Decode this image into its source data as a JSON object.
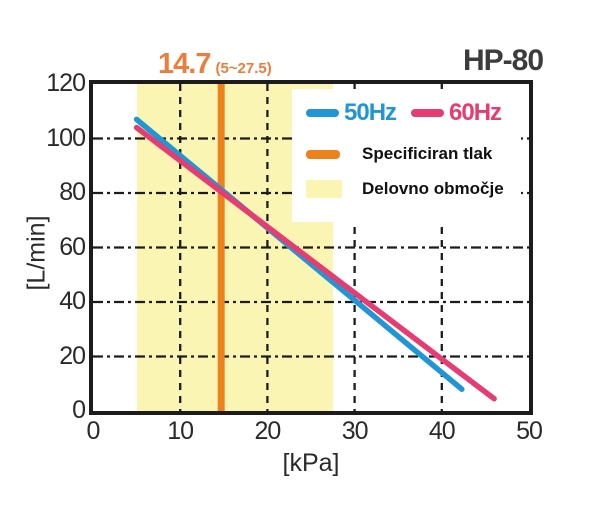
{
  "header": {
    "pressure_value": "14.7",
    "pressure_range": "(5~27.5)",
    "model": "HP-80"
  },
  "legend": {
    "hz50": "50Hz",
    "hz60": "60Hz",
    "specified_pressure": "Specificiran tlak",
    "working_range": "Delovno območje"
  },
  "axes": {
    "x_label": "[kPa]",
    "y_label": "[L/min]"
  },
  "colors": {
    "blue": "#2196d4",
    "pink": "#e73c72",
    "orange_line": "#ed821d",
    "orange_text": "#ee7d39",
    "yellow_band": "#fbf5b4",
    "axis": "#1c1c1c"
  },
  "chart_data": {
    "type": "line",
    "title": "HP-80",
    "xlabel": "[kPa]",
    "ylabel": "[L/min]",
    "xlim": [
      0,
      50
    ],
    "ylim": [
      0,
      120
    ],
    "xticks": [
      0,
      10,
      20,
      30,
      40,
      50
    ],
    "yticks": [
      0,
      20,
      40,
      60,
      80,
      100,
      120
    ],
    "grid": true,
    "legend_position": "upper right",
    "series": [
      {
        "name": "50Hz",
        "color": "#2196d4",
        "points": [
          [
            5,
            107
          ],
          [
            42.3,
            8
          ]
        ]
      },
      {
        "name": "60Hz",
        "color": "#e73c72",
        "points": [
          [
            5,
            104
          ],
          [
            46,
            4.5
          ]
        ]
      }
    ],
    "specified_pressure_kpa": 14.7,
    "working_range_kpa": [
      5,
      27.5
    ]
  }
}
